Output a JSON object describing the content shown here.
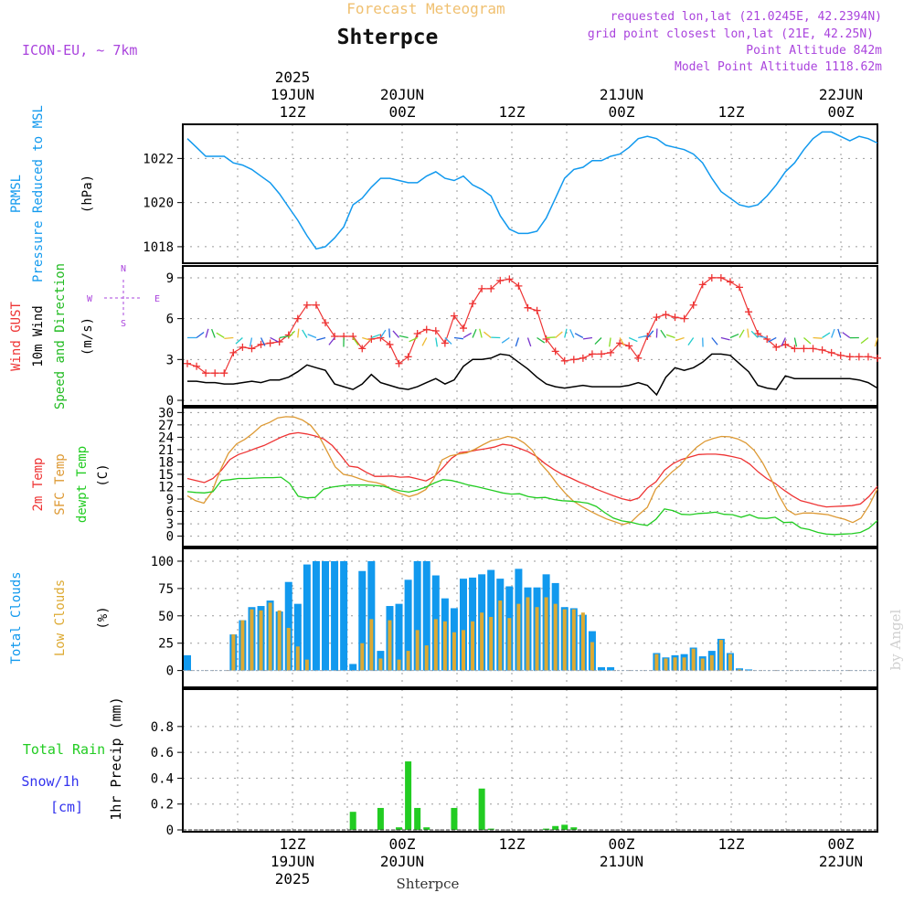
{
  "header": {
    "super_title": "Forecast Meteogram",
    "location": "Shterpce",
    "model": "ICON-EU, ~ 7km",
    "requested": "requested lon,lat (21.0245E, 42.2394N)",
    "grid_point": "grid point closest lon,lat (21E, 42.25N)",
    "point_altitude": "Point Altitude 842m",
    "model_altitude": "Model Point Altitude 1118.62m",
    "footer_location": "Shterpce",
    "watermark": "by Angel"
  },
  "colors": {
    "pressure": "#1199ee",
    "gust": "#ee3333",
    "wind": "#000000",
    "direction": "#22bb22",
    "temp2m": "#ee3333",
    "sfc": "#dd9933",
    "dewpt": "#22cc22",
    "total_clouds": "#1199ee",
    "low_clouds": "#ddaa33",
    "rain": "#22cc22",
    "snow": "#3333ee",
    "header_orange": "#f0c070",
    "header_purple": "#aa44dd"
  },
  "time_axis": {
    "top_labels": [
      {
        "t": 12,
        "lines": [
          "2025",
          "19JUN",
          "12Z"
        ]
      },
      {
        "t": 24,
        "lines": [
          "20JUN",
          "00Z"
        ]
      },
      {
        "t": 36,
        "lines": [
          "12Z"
        ]
      },
      {
        "t": 48,
        "lines": [
          "21JUN",
          "00Z"
        ]
      },
      {
        "t": 60,
        "lines": [
          "12Z"
        ]
      },
      {
        "t": 72,
        "lines": [
          "22JUN",
          "00Z"
        ]
      }
    ],
    "bottom_labels": [
      {
        "t": 12,
        "lines": [
          "12Z",
          "19JUN",
          "2025"
        ]
      },
      {
        "t": 24,
        "lines": [
          "00Z",
          "20JUN"
        ]
      },
      {
        "t": 36,
        "lines": [
          "12Z"
        ]
      },
      {
        "t": 48,
        "lines": [
          "00Z",
          "21JUN"
        ]
      },
      {
        "t": 60,
        "lines": [
          "12Z"
        ]
      },
      {
        "t": 72,
        "lines": [
          "00Z",
          "22JUN"
        ]
      }
    ]
  },
  "chart_data": [
    {
      "type": "line",
      "title": "PRMSL Pressure Reduced to MSL",
      "label_lines": [
        [
          "PRMSL"
        ],
        [
          "Pressure Reduced to MSL"
        ]
      ],
      "unit": "(hPa)",
      "ylim": [
        1017.5,
        1023.3
      ],
      "yticks": [
        1018,
        1020,
        1022
      ],
      "x_hours_from_19jun00z": [
        0,
        76
      ],
      "series": [
        {
          "name": "PRMSL",
          "values": [
            1022.9,
            1022.5,
            1022.1,
            1022.1,
            1022.1,
            1021.8,
            1021.7,
            1021.5,
            1021.2,
            1020.9,
            1020.4,
            1019.8,
            1019.2,
            1018.5,
            1017.9,
            1018.0,
            1018.4,
            1018.9,
            1019.9,
            1020.2,
            1020.7,
            1021.1,
            1021.1,
            1021.0,
            1020.9,
            1020.9,
            1021.2,
            1021.4,
            1021.1,
            1021.0,
            1021.2,
            1020.8,
            1020.6,
            1020.3,
            1019.4,
            1018.8,
            1018.6,
            1018.6,
            1018.7,
            1019.3,
            1020.2,
            1021.1,
            1021.5,
            1021.6,
            1021.9,
            1021.9,
            1022.1,
            1022.2,
            1022.5,
            1022.9,
            1023.0,
            1022.9,
            1022.6,
            1022.5,
            1022.4,
            1022.2,
            1021.8,
            1021.1,
            1020.5,
            1020.2,
            1019.9,
            1019.8,
            1019.9,
            1020.3,
            1020.8,
            1021.4,
            1021.8,
            1022.4,
            1022.9,
            1023.2,
            1023.2,
            1023.0,
            1022.8,
            1023.0,
            1022.9,
            1022.7
          ]
        }
      ]
    },
    {
      "type": "line",
      "title": "Wind GUST / 10m Wind Speed and Direction",
      "label_lines": [
        [
          "Wind GUST"
        ],
        [
          "10m Wind"
        ],
        [
          "Speed and Direction"
        ]
      ],
      "unit": "(m/s)",
      "compass": {
        "n": "N",
        "s": "S",
        "w": "W",
        "e": "E"
      },
      "ylim": [
        0,
        9.6
      ],
      "yticks": [
        0,
        3,
        6,
        9
      ],
      "series": [
        {
          "name": "Wind GUST",
          "values": [
            2.7,
            2.5,
            2.0,
            2.0,
            2.0,
            3.5,
            3.9,
            3.8,
            4.1,
            4.2,
            4.3,
            4.8,
            6.0,
            7.0,
            7.0,
            5.7,
            4.7,
            4.7,
            4.7,
            3.8,
            4.5,
            4.6,
            4.1,
            2.7,
            3.2,
            4.9,
            5.2,
            5.1,
            4.2,
            6.2,
            5.3,
            7.1,
            8.2,
            8.2,
            8.8,
            8.9,
            8.4,
            6.8,
            6.6,
            4.5,
            3.6,
            2.9,
            3.0,
            3.1,
            3.4,
            3.4,
            3.5,
            4.2,
            4.0,
            3.1,
            4.7,
            6.1,
            6.3,
            6.1,
            6.0,
            7.0,
            8.5,
            9.0,
            9.0,
            8.7,
            8.3,
            6.5,
            4.9,
            4.5,
            3.9,
            4.1,
            3.8,
            3.8,
            3.8,
            3.7,
            3.5,
            3.3,
            3.2,
            3.2,
            3.2,
            3.1
          ]
        },
        {
          "name": "10m Wind",
          "values": [
            1.4,
            1.4,
            1.3,
            1.3,
            1.2,
            1.2,
            1.3,
            1.4,
            1.3,
            1.5,
            1.5,
            1.7,
            2.1,
            2.6,
            2.4,
            2.2,
            1.2,
            1.0,
            0.8,
            1.2,
            1.9,
            1.3,
            1.1,
            0.9,
            0.8,
            1.0,
            1.3,
            1.6,
            1.2,
            1.5,
            2.5,
            3.0,
            3.0,
            3.1,
            3.4,
            3.3,
            2.8,
            2.3,
            1.7,
            1.2,
            1.0,
            0.9,
            1.0,
            1.1,
            1.0,
            1.0,
            1.0,
            1.0,
            1.1,
            1.3,
            1.1,
            0.4,
            1.7,
            2.4,
            2.2,
            2.4,
            2.8,
            3.4,
            3.4,
            3.3,
            2.7,
            2.1,
            1.1,
            0.9,
            0.8,
            1.8,
            1.6,
            1.6,
            1.6,
            1.6,
            1.6,
            1.6,
            1.6,
            1.5,
            1.3,
            0.9
          ]
        }
      ]
    },
    {
      "type": "line",
      "title": "2m Temp / SFC Temp / dewpt Temp",
      "label_lines": [
        [
          "2m Temp"
        ],
        [
          "SFC Temp"
        ],
        [
          "dewpt Temp"
        ]
      ],
      "unit": "(C)",
      "ylim": [
        -1.2,
        30.3
      ],
      "yticks": [
        0,
        3,
        6,
        9,
        12,
        15,
        18,
        21,
        24,
        27,
        30
      ],
      "series": [
        {
          "name": "2m Temp",
          "values": [
            14,
            13.5,
            13,
            14,
            16,
            18.6,
            19.8,
            20.5,
            21.3,
            22,
            23,
            24,
            24.8,
            25.1,
            24.8,
            24.3,
            23.6,
            22,
            19.6,
            17,
            16.7,
            15.5,
            14.5,
            14.5,
            14.6,
            14.3,
            14.4,
            13.9,
            13.4,
            14.5,
            16.6,
            18.9,
            20.3,
            20.5,
            20.9,
            21.2,
            21.6,
            22.3,
            22,
            21.3,
            20.5,
            19.3,
            17.6,
            16.2,
            15,
            14.1,
            13.1,
            12.3,
            11.4,
            10.6,
            9.8,
            9.1,
            8.6,
            9.3,
            11.7,
            13.2,
            16,
            17.6,
            18.6,
            19.2,
            19.8,
            19.9,
            19.9,
            19.7,
            19.3,
            18.8,
            17.5,
            15.6,
            14,
            12.8,
            11.2,
            9.8,
            8.6,
            8.1,
            7.5,
            7.1,
            7.2,
            7.3,
            7.4,
            7.8,
            9.6,
            12.1
          ]
        },
        {
          "name": "SFC Temp",
          "values": [
            9.8,
            8.6,
            8,
            10.8,
            16,
            20.1,
            22.4,
            23.5,
            25,
            26.8,
            27.6,
            28.7,
            29,
            28.9,
            28.2,
            26.9,
            24.4,
            20.6,
            16.8,
            15,
            14.6,
            13.9,
            13.3,
            13,
            12.4,
            11.1,
            10.3,
            9.6,
            10.2,
            11.3,
            13.9,
            18.5,
            19.5,
            19.9,
            20.2,
            21.1,
            22.2,
            23.2,
            23.6,
            24.2,
            23.8,
            22.6,
            20.8,
            17.6,
            15.4,
            12.7,
            10.4,
            8.5,
            7.2,
            6.1,
            5.1,
            4.2,
            3.5,
            2.8,
            3.4,
            5.3,
            7,
            11.4,
            13.6,
            15.6,
            17.2,
            19.6,
            21.6,
            23,
            23.7,
            24.2,
            24.1,
            23.6,
            22.6,
            20.8,
            17.9,
            14.1,
            9.9,
            6.4,
            5.2,
            5.6,
            5.6,
            5.4,
            5.2,
            4.6,
            4.1,
            3.3,
            4.4,
            7.5,
            11.5
          ]
        },
        {
          "name": "dewpt Temp",
          "values": [
            10.8,
            10.6,
            10.5,
            10.8,
            13.5,
            13.7,
            14,
            14,
            14.1,
            14.2,
            14.2,
            14.3,
            12.8,
            9.7,
            9.3,
            9.4,
            11.4,
            11.9,
            12.2,
            12.4,
            12.4,
            12.4,
            12.3,
            12.1,
            11.5,
            11,
            10.7,
            11.2,
            11.9,
            12.9,
            13.7,
            13.5,
            13,
            12.4,
            12,
            11.5,
            11,
            10.5,
            10.2,
            10.3,
            9.6,
            9.3,
            9.4,
            8.9,
            8.6,
            8.5,
            8.3,
            8,
            7.2,
            5.7,
            4.4,
            3.7,
            3.4,
            2.9,
            2.6,
            4.1,
            6.6,
            6.2,
            5.3,
            5.2,
            5.5,
            5.6,
            5.8,
            5.3,
            5.2,
            4.6,
            5.2,
            4.4,
            4.3,
            4.6,
            3.3,
            3.4,
            2,
            1.6,
            0.9,
            0.5,
            0.4,
            0.5,
            0.6,
            0.9,
            1.9,
            3.8
          ]
        }
      ]
    },
    {
      "type": "bar",
      "title": "Total Clouds / Low Clouds",
      "label_lines": [
        [
          "Total Clouds"
        ],
        [
          "Low Clouds"
        ]
      ],
      "unit": "(%)",
      "ylim": [
        -7,
        105
      ],
      "yticks": [
        0,
        25,
        50,
        75,
        100
      ],
      "series": [
        {
          "name": "Total Clouds",
          "values": [
            14,
            0,
            0,
            0,
            0,
            33,
            46,
            58,
            59,
            64,
            54,
            81,
            61,
            97,
            100,
            100,
            100,
            100,
            6,
            91,
            100,
            18,
            59,
            61,
            83,
            100,
            100,
            87,
            66,
            57,
            84,
            85,
            88,
            92,
            84,
            77,
            93,
            76,
            76,
            88,
            80,
            58,
            57,
            51,
            36,
            3,
            3,
            0,
            0,
            0,
            0,
            16,
            12,
            14,
            15,
            21,
            13,
            18,
            29,
            16,
            2,
            1,
            0,
            0,
            0,
            0,
            0,
            0,
            0,
            0,
            0,
            0,
            0,
            0,
            0,
            0
          ]
        },
        {
          "name": "Low Clouds",
          "values": [
            0,
            0,
            0,
            0,
            0,
            33,
            46,
            56,
            55,
            62,
            55,
            39,
            22,
            10,
            0,
            0,
            0,
            0,
            0,
            25,
            47,
            11,
            46,
            10,
            18,
            37,
            23,
            47,
            45,
            35,
            37,
            45,
            53,
            49,
            64,
            48,
            61,
            67,
            58,
            67,
            61,
            56,
            56,
            53,
            26,
            0,
            0,
            0,
            0,
            0,
            0,
            15,
            11,
            12,
            12,
            20,
            11,
            14,
            28,
            15,
            1,
            0,
            0,
            0,
            0,
            0,
            0,
            0,
            0,
            0,
            0,
            0,
            0,
            0,
            0,
            0
          ]
        }
      ]
    },
    {
      "type": "bar",
      "title": "Total Rain / Snow/1h",
      "label_lines": [
        [
          "Total  Rain"
        ],
        [
          "Snow/1h"
        ],
        [
          "[cm]"
        ]
      ],
      "unit": "1hr Precip (mm)",
      "ylim": [
        0,
        0.99
      ],
      "yticks": [
        0,
        0.2,
        0.4,
        0.6,
        0.8
      ],
      "series": [
        {
          "name": "Total Rain",
          "values": [
            0,
            0,
            0,
            0,
            0,
            0,
            0,
            0,
            0,
            0,
            0,
            0,
            0,
            0,
            0,
            0,
            0,
            0,
            0.14,
            0,
            0,
            0.17,
            0,
            0.02,
            0.53,
            0.17,
            0.02,
            0,
            0,
            0.17,
            0,
            0,
            0.32,
            0.01,
            0,
            0,
            0,
            0,
            0,
            0.01,
            0.03,
            0.04,
            0.02,
            0,
            0,
            0,
            0,
            0,
            0,
            0,
            0,
            0,
            0,
            0,
            0,
            0,
            0,
            0,
            0,
            0,
            0,
            0,
            0,
            0,
            0,
            0,
            0,
            0,
            0,
            0,
            0,
            0,
            0,
            0,
            0,
            0
          ]
        },
        {
          "name": "Snow/1h",
          "values": [
            0,
            0,
            0,
            0,
            0,
            0,
            0,
            0,
            0,
            0,
            0,
            0,
            0,
            0,
            0,
            0,
            0,
            0,
            0,
            0,
            0,
            0,
            0,
            0,
            0,
            0,
            0,
            0,
            0,
            0,
            0,
            0,
            0,
            0,
            0,
            0,
            0,
            0,
            0,
            0,
            0,
            0,
            0,
            0,
            0,
            0,
            0,
            0,
            0,
            0,
            0,
            0,
            0,
            0,
            0,
            0,
            0,
            0,
            0,
            0,
            0,
            0,
            0,
            0,
            0,
            0,
            0,
            0,
            0,
            0,
            0,
            0,
            0,
            0,
            0,
            0
          ]
        }
      ]
    }
  ]
}
